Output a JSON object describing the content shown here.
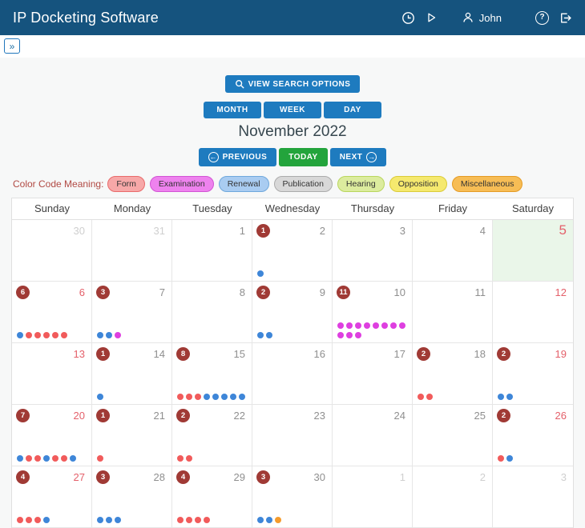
{
  "header": {
    "title": "IP Docketing Software",
    "user_name": "John"
  },
  "toolbar": {
    "view_search_options": "VIEW SEARCH OPTIONS",
    "month": "MONTH",
    "week": "WEEK",
    "day": "DAY",
    "month_title": "November 2022",
    "previous": "PREVIOUS",
    "today": "TODAY",
    "next": "NEXT",
    "prev_arrow": "←",
    "next_arrow": "→",
    "expand_glyph": "»",
    "help_glyph": "?"
  },
  "legend": {
    "label": "Color Code Meaning:",
    "items": [
      {
        "key": "form",
        "label": "Form",
        "fill": "#F7A8A8",
        "border": "#E96A6A"
      },
      {
        "key": "examination",
        "label": "Examination",
        "fill": "#EE82EE",
        "border": "#D254D4"
      },
      {
        "key": "renewal",
        "label": "Renewal",
        "fill": "#A9CCF1",
        "border": "#6FA8DC"
      },
      {
        "key": "publication",
        "label": "Publication",
        "fill": "#D8D8D8",
        "border": "#ABABAB"
      },
      {
        "key": "hearing",
        "label": "Hearing",
        "fill": "#DCEC9E",
        "border": "#B9D65E"
      },
      {
        "key": "opposition",
        "label": "Opposition",
        "fill": "#F5E96E",
        "border": "#DACB39"
      },
      {
        "key": "miscellaneous",
        "label": "Miscellaneous",
        "fill": "#F7BD55",
        "border": "#E49B25"
      }
    ]
  },
  "dot_colors": {
    "form": "#F15B5B",
    "examination": "#DE3FE0",
    "renewal": "#3E86D8",
    "publication": "#9E9E9E",
    "hearing": "#BCD65C",
    "opposition": "#E6CF2E",
    "miscellaneous": "#F59B2C"
  },
  "calendar": {
    "day_names": [
      "Sunday",
      "Monday",
      "Tuesday",
      "Wednesday",
      "Thursday",
      "Friday",
      "Saturday"
    ],
    "weeks": [
      [
        {
          "day": "30",
          "muted": true
        },
        {
          "day": "31",
          "muted": true
        },
        {
          "day": "1"
        },
        {
          "day": "2",
          "badge": "1",
          "dots": [
            "renewal"
          ]
        },
        {
          "day": "3"
        },
        {
          "day": "4"
        },
        {
          "day": "5",
          "weekend": true,
          "today": true
        }
      ],
      [
        {
          "day": "6",
          "weekend": true,
          "badge": "6",
          "dots": [
            "renewal",
            "form",
            "form",
            "form",
            "form",
            "form"
          ]
        },
        {
          "day": "7",
          "badge": "3",
          "dots": [
            "renewal",
            "renewal",
            "examination"
          ]
        },
        {
          "day": "8"
        },
        {
          "day": "9",
          "badge": "2",
          "dots": [
            "renewal",
            "renewal"
          ]
        },
        {
          "day": "10",
          "badge": "11",
          "dots": [
            "examination",
            "examination",
            "examination",
            "examination",
            "examination",
            "examination",
            "examination",
            "examination",
            "examination",
            "examination",
            "examination"
          ]
        },
        {
          "day": "11"
        },
        {
          "day": "12",
          "weekend": true
        }
      ],
      [
        {
          "day": "13",
          "weekend": true
        },
        {
          "day": "14",
          "badge": "1",
          "dots": [
            "renewal"
          ]
        },
        {
          "day": "15",
          "badge": "8",
          "dots": [
            "form",
            "form",
            "form",
            "renewal",
            "renewal",
            "renewal",
            "renewal",
            "renewal"
          ]
        },
        {
          "day": "16"
        },
        {
          "day": "17"
        },
        {
          "day": "18",
          "badge": "2",
          "dots": [
            "form",
            "form"
          ]
        },
        {
          "day": "19",
          "weekend": true,
          "badge": "2",
          "dots": [
            "renewal",
            "renewal"
          ]
        }
      ],
      [
        {
          "day": "20",
          "weekend": true,
          "badge": "7",
          "dots": [
            "renewal",
            "form",
            "form",
            "renewal",
            "form",
            "form",
            "renewal"
          ]
        },
        {
          "day": "21",
          "badge": "1",
          "dots": [
            "form"
          ]
        },
        {
          "day": "22",
          "badge": "2",
          "dots": [
            "form",
            "form"
          ]
        },
        {
          "day": "23"
        },
        {
          "day": "24"
        },
        {
          "day": "25"
        },
        {
          "day": "26",
          "weekend": true,
          "badge": "2",
          "dots": [
            "form",
            "renewal"
          ]
        }
      ],
      [
        {
          "day": "27",
          "weekend": true,
          "badge": "4",
          "dots": [
            "form",
            "form",
            "form",
            "renewal"
          ]
        },
        {
          "day": "28",
          "badge": "3",
          "dots": [
            "renewal",
            "renewal",
            "renewal"
          ]
        },
        {
          "day": "29",
          "badge": "4",
          "dots": [
            "form",
            "form",
            "form",
            "form"
          ]
        },
        {
          "day": "30",
          "badge": "3",
          "dots": [
            "renewal",
            "renewal",
            "miscellaneous"
          ]
        },
        {
          "day": "1",
          "muted": true
        },
        {
          "day": "2",
          "muted": true
        },
        {
          "day": "3",
          "muted": true
        }
      ]
    ]
  }
}
